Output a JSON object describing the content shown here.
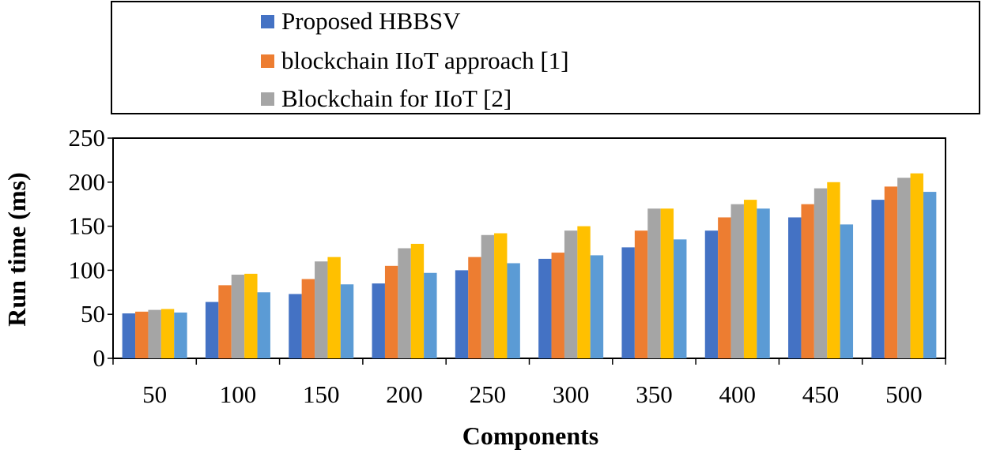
{
  "chart_data": {
    "type": "bar",
    "title": "",
    "xlabel": "Components",
    "ylabel": "Run time (ms)",
    "ylim": [
      0,
      250
    ],
    "yticks": [
      0,
      50,
      100,
      150,
      200,
      250
    ],
    "categories": [
      "50",
      "100",
      "150",
      "200",
      "250",
      "300",
      "350",
      "400",
      "450",
      "500"
    ],
    "series": [
      {
        "name": "Proposed HBBSV",
        "color": "#4472C4",
        "values": [
          51,
          64,
          73,
          85,
          100,
          113,
          126,
          145,
          160,
          180
        ]
      },
      {
        "name": "blockchain IIoT approach [1]",
        "color": "#ED7D31",
        "values": [
          53,
          83,
          90,
          105,
          115,
          120,
          145,
          160,
          175,
          195
        ]
      },
      {
        "name": "Blockchain for IIoT [2]",
        "color": "#A5A5A5",
        "values": [
          55,
          95,
          110,
          125,
          140,
          145,
          170,
          175,
          193,
          205
        ]
      },
      {
        "name": "",
        "color": "#FFC000",
        "values": [
          56,
          96,
          115,
          130,
          142,
          150,
          170,
          180,
          200,
          210
        ]
      },
      {
        "name": "",
        "color": "#5B9BD5",
        "values": [
          52,
          75,
          84,
          97,
          108,
          117,
          135,
          170,
          152,
          189
        ]
      }
    ],
    "legend": {
      "position": "top",
      "entries": [
        "Proposed HBBSV",
        "blockchain IIoT approach [1]",
        "Blockchain for IIoT [2]"
      ]
    }
  }
}
